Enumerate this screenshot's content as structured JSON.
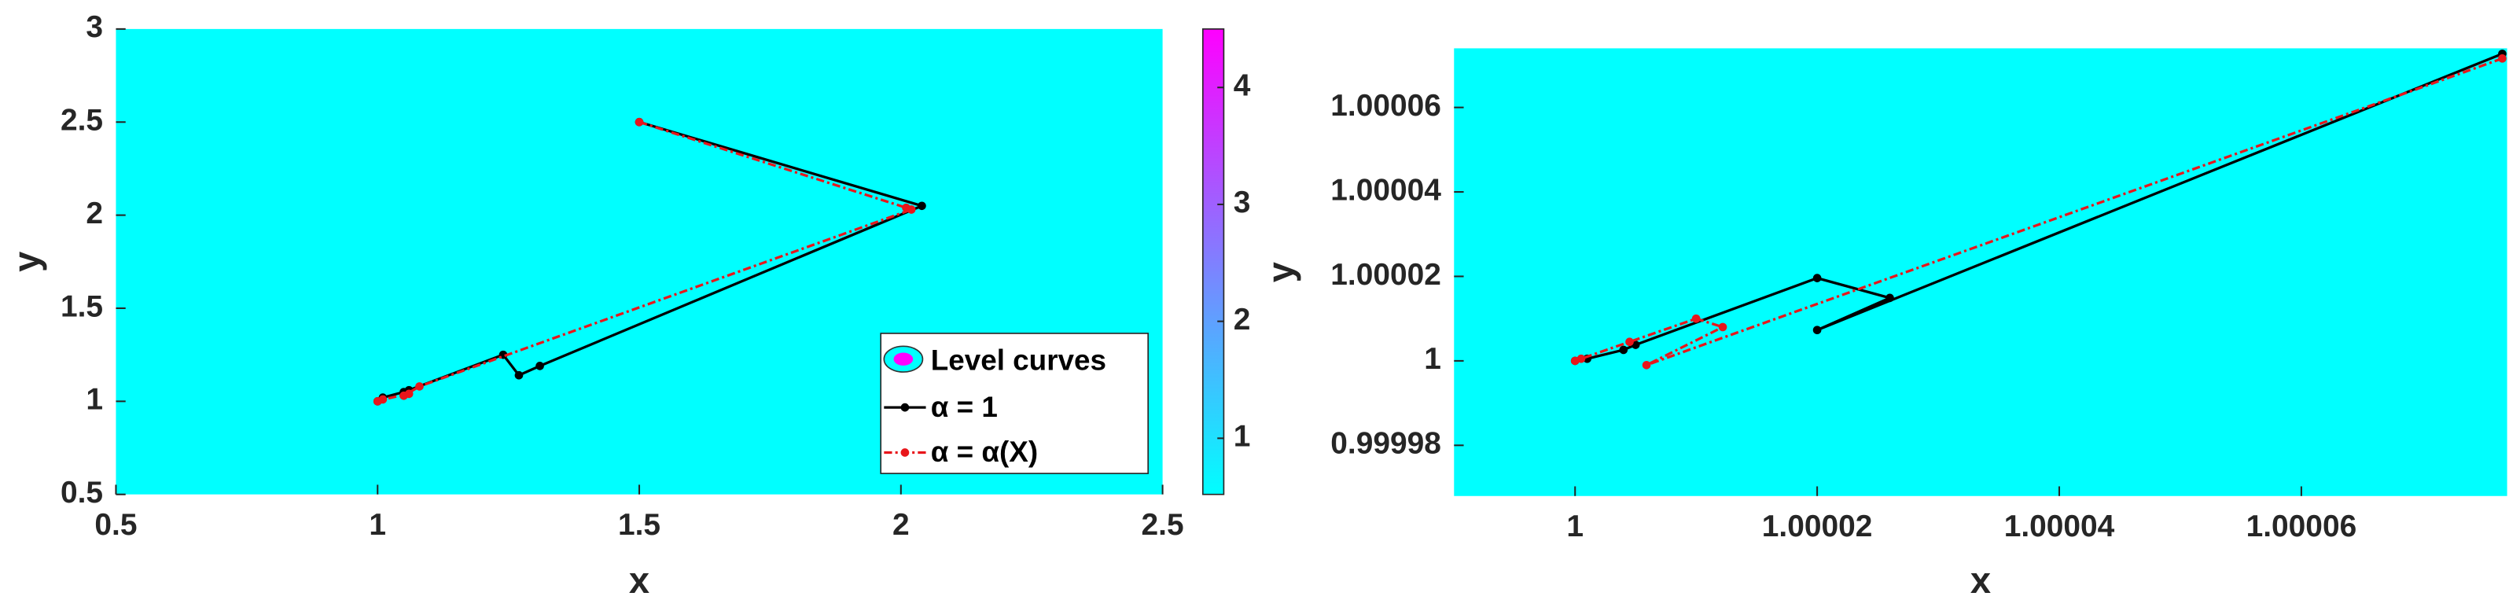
{
  "chart_data": [
    {
      "type": "line",
      "xlabel": "x",
      "ylabel": "y",
      "xlim": [
        0.5,
        2.5
      ],
      "ylim": [
        0.5,
        3
      ],
      "xticks": [
        0.5,
        1,
        1.5,
        2,
        2.5
      ],
      "yticks": [
        0.5,
        1,
        1.5,
        2,
        2.5,
        3
      ],
      "background": "#00ffff",
      "colorbar": {
        "label": "Level curves",
        "clim": [
          0.52,
          4.5
        ],
        "ticks": [
          1,
          2,
          3,
          4
        ],
        "colors": [
          "#00ffff",
          "#ff00ff"
        ]
      },
      "legend": "lower right",
      "series": [
        {
          "name": "α = 1",
          "color": "#000000",
          "dashed": false,
          "x": [
            1.5,
            2.04,
            1.31,
            1.27,
            1.24,
            1.06,
            1.05,
            1.01,
            1.0
          ],
          "values": [
            2.5,
            2.05,
            1.19,
            1.14,
            1.25,
            1.06,
            1.05,
            1.02,
            1.0
          ]
        },
        {
          "name": "α = α(X)",
          "color": "#e8161b",
          "dashed": true,
          "x": [
            1.5,
            2.01,
            2.02,
            1.08,
            1.05,
            1.06,
            1.01,
            1.0
          ],
          "values": [
            2.5,
            2.04,
            2.03,
            1.08,
            1.03,
            1.04,
            1.01,
            1.0
          ]
        }
      ]
    },
    {
      "type": "line",
      "xlabel": "x",
      "ylabel": "y",
      "xlim": [
        0.99999,
        1.000077
      ],
      "ylim": [
        0.999968,
        1.000074
      ],
      "xticks": [
        1,
        1.00002,
        1.00004,
        1.00006
      ],
      "yticks": [
        0.99998,
        1,
        1.00002,
        1.00004,
        1.00006
      ],
      "background": "#00ffff",
      "series": [
        {
          "color": "#000000",
          "dashed": false,
          "x": [
            1.0000766,
            1.00002,
            1.000026,
            1.00002,
            1.000005,
            1.000004,
            1.000001,
            1.0
          ],
          "values": [
            1.0000727,
            1.0000073,
            1.0000149,
            1.0000196,
            1.0000038,
            1.0000026,
            1.0000005,
            1.0
          ]
        },
        {
          "color": "#e8161b",
          "dashed": true,
          "x": [
            1.0000766,
            1.0000059,
            1.0000122,
            1.00001,
            1.0000045,
            1.0000005,
            1.0
          ],
          "values": [
            1.0000716,
            0.999999,
            1.000008,
            1.00001,
            1.0000045,
            1.0000005,
            1.0
          ]
        }
      ]
    }
  ]
}
